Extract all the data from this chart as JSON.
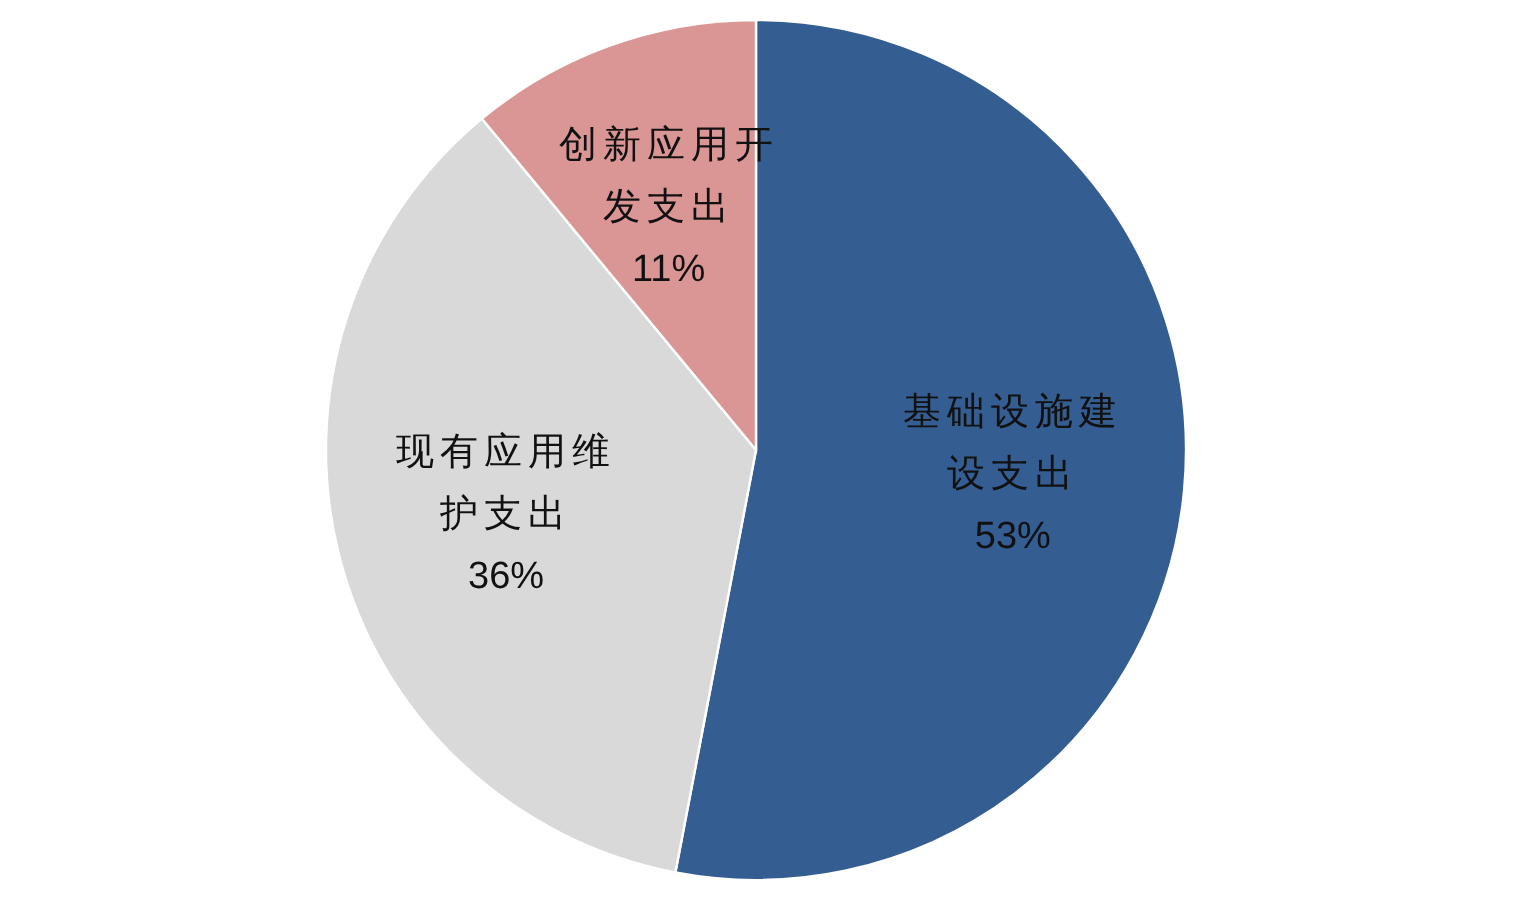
{
  "chart_data": {
    "type": "pie",
    "categories": [
      "基础设施建设支出",
      "现有应用维护支出",
      "创新应用开发支出"
    ],
    "values": [
      53,
      36,
      11
    ],
    "colors": [
      "#345d91",
      "#d9d9d9",
      "#d99694"
    ],
    "value_labels": [
      "53%",
      "36%",
      "11%"
    ]
  }
}
